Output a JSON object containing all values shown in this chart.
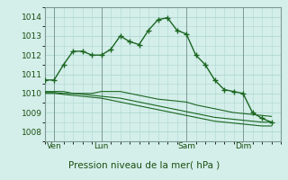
{
  "background_color": "#d4eeea",
  "grid_color": "#b0d8d2",
  "line_color": "#1a6620",
  "title": "Pression niveau de la mer( hPa )",
  "ylabel_ticks": [
    1008,
    1009,
    1010,
    1011,
    1012,
    1013,
    1014
  ],
  "ylim": [
    1007.5,
    1014.5
  ],
  "xlim": [
    0,
    100
  ],
  "xtick_positions": [
    4,
    24,
    60,
    84
  ],
  "xtick_labels": [
    "Ven",
    "Lun",
    "Sam",
    "Dim"
  ],
  "vlines": [
    4,
    24,
    60,
    84
  ],
  "series1_x": [
    0,
    4,
    8,
    12,
    16,
    20,
    24,
    28,
    32,
    36,
    40,
    44,
    48,
    52,
    56,
    60,
    64,
    68,
    72,
    76,
    80,
    84,
    88,
    92,
    96
  ],
  "series1_y": [
    1010.1,
    1010.1,
    1010.1,
    1010.0,
    1010.0,
    1010.0,
    1010.1,
    1010.1,
    1010.1,
    1010.0,
    1009.9,
    1009.8,
    1009.7,
    1009.65,
    1009.6,
    1009.55,
    1009.4,
    1009.3,
    1009.2,
    1009.1,
    1009.0,
    1008.95,
    1008.9,
    1008.85,
    1008.8
  ],
  "series2_x": [
    0,
    4,
    8,
    12,
    16,
    20,
    24,
    28,
    32,
    36,
    40,
    44,
    48,
    52,
    56,
    60,
    64,
    68,
    72,
    76,
    80,
    84,
    88,
    92,
    96
  ],
  "series2_y": [
    1010.05,
    1010.05,
    1010.0,
    1010.0,
    1009.95,
    1009.9,
    1009.85,
    1009.8,
    1009.75,
    1009.65,
    1009.55,
    1009.45,
    1009.35,
    1009.25,
    1009.15,
    1009.05,
    1008.95,
    1008.85,
    1008.75,
    1008.7,
    1008.65,
    1008.6,
    1008.55,
    1008.5,
    1008.5
  ],
  "series3_x": [
    0,
    4,
    8,
    12,
    16,
    20,
    24,
    28,
    32,
    36,
    40,
    44,
    48,
    52,
    56,
    60,
    64,
    68,
    72,
    76,
    80,
    84,
    88,
    92,
    96
  ],
  "series3_y": [
    1010.0,
    1010.0,
    1009.95,
    1009.9,
    1009.85,
    1009.8,
    1009.75,
    1009.65,
    1009.55,
    1009.45,
    1009.35,
    1009.25,
    1009.15,
    1009.05,
    1008.95,
    1008.85,
    1008.75,
    1008.65,
    1008.55,
    1008.5,
    1008.45,
    1008.4,
    1008.35,
    1008.3,
    1008.3
  ],
  "series_main_x": [
    0,
    4,
    8,
    12,
    16,
    20,
    24,
    28,
    32,
    36,
    40,
    44,
    48,
    52,
    56,
    60,
    64,
    68,
    72,
    76,
    80,
    84,
    88,
    92,
    96
  ],
  "series_main_y": [
    1010.7,
    1010.7,
    1011.5,
    1012.2,
    1012.2,
    1012.0,
    1012.0,
    1012.3,
    1013.0,
    1012.7,
    1012.55,
    1013.3,
    1013.85,
    1013.95,
    1013.3,
    1013.1,
    1012.0,
    1011.5,
    1010.7,
    1010.2,
    1010.1,
    1010.0,
    1009.0,
    1008.7,
    1008.5
  ]
}
